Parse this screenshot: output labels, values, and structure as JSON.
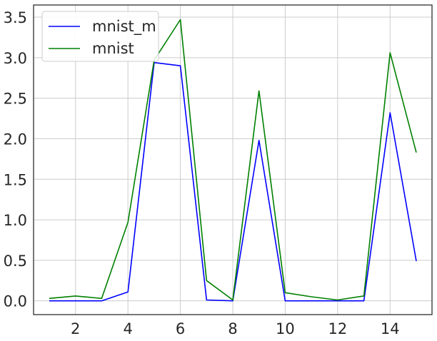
{
  "chart_data": {
    "type": "line",
    "title": "",
    "xlabel": "",
    "ylabel": "",
    "xlim": [
      0.4,
      15.6
    ],
    "ylim": [
      -0.17,
      3.65
    ],
    "grid": true,
    "legend_placement": "top-left",
    "x": [
      1,
      2,
      3,
      4,
      5,
      6,
      7,
      8,
      9,
      10,
      11,
      12,
      13,
      14,
      15
    ],
    "series": [
      {
        "name": "mnist_m",
        "color": "#0000ff",
        "values": [
          0.0,
          0.0,
          0.0,
          0.11,
          2.94,
          2.9,
          0.01,
          0.0,
          1.98,
          0.0,
          0.0,
          0.0,
          0.0,
          2.32,
          0.49
        ]
      },
      {
        "name": "mnist",
        "color": "#008000",
        "values": [
          0.03,
          0.06,
          0.03,
          0.97,
          2.97,
          3.47,
          0.25,
          0.01,
          2.59,
          0.1,
          0.05,
          0.01,
          0.06,
          3.06,
          1.83
        ]
      }
    ],
    "x_ticks": [
      2,
      4,
      6,
      8,
      10,
      12,
      14
    ],
    "x_tick_labels": [
      "2",
      "4",
      "6",
      "8",
      "10",
      "12",
      "14"
    ],
    "y_ticks": [
      0.0,
      0.5,
      1.0,
      1.5,
      2.0,
      2.5,
      3.0,
      3.5
    ],
    "y_tick_labels": [
      "0.0",
      "0.5",
      "1.0",
      "1.5",
      "2.0",
      "2.5",
      "3.0",
      "3.5"
    ]
  }
}
